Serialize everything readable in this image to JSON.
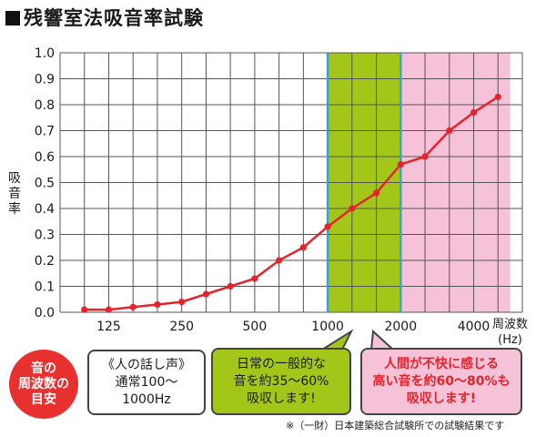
{
  "title": "残響室法吸音率試験",
  "chart_data": {
    "type": "line",
    "ylabel": "吸音率",
    "xunit_line1": "周波数",
    "xunit_line2": "(Hz)",
    "ylim": [
      0,
      1.0
    ],
    "yticks": [
      "0.0",
      "0.1",
      "0.2",
      "0.3",
      "0.4",
      "0.5",
      "0.6",
      "0.7",
      "0.8",
      "0.9",
      "1.0"
    ],
    "xticks": [
      {
        "label": "125",
        "index": 1
      },
      {
        "label": "250",
        "index": 4
      },
      {
        "label": "500",
        "index": 7
      },
      {
        "label": "1000",
        "index": 10
      },
      {
        "label": "2000",
        "index": 13
      },
      {
        "label": "4000",
        "index": 16
      }
    ],
    "bands": [
      {
        "from": 10,
        "to": 13,
        "color": "#a3c718"
      },
      {
        "from": 13,
        "to": 17.5,
        "color": "#f6c2d8"
      }
    ],
    "grid": true,
    "series": [
      {
        "color": "#e5232b",
        "index": [
          0,
          1,
          2,
          3,
          4,
          5,
          6,
          7,
          8,
          9,
          10,
          11,
          12,
          13,
          14,
          15,
          16,
          17
        ],
        "values": [
          0.01,
          0.01,
          0.02,
          0.03,
          0.04,
          0.07,
          0.1,
          0.13,
          0.2,
          0.25,
          0.33,
          0.4,
          0.46,
          0.57,
          0.6,
          0.7,
          0.77,
          0.83
        ]
      }
    ]
  },
  "legend": {
    "circle": [
      "音の",
      "周波数の",
      "目安"
    ],
    "voice": {
      "line1": "《人の話し声》",
      "line2": "通常100～",
      "line3": "1000Hz"
    },
    "normal": {
      "line1": "日常の一般的な",
      "line2": "音を約35～60%",
      "line3": "吸収します!"
    },
    "high": {
      "line1": "人間が不快に感じる",
      "line2": "高い音を約60～80%も",
      "line3": "吸収します!"
    }
  },
  "note": "※（一財）日本建築総合試験所での試験結果です"
}
